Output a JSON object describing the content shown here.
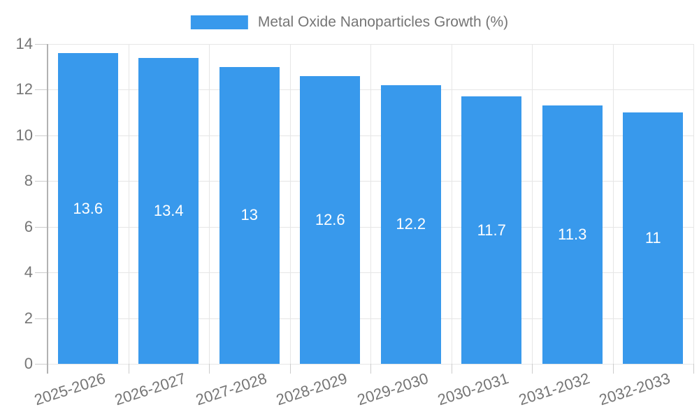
{
  "chart_data": {
    "type": "bar",
    "title": "Metal Oxide Nanoparticles Growth (%)",
    "categories": [
      "2025-2026",
      "2026-2027",
      "2027-2028",
      "2028-2029",
      "2029-2030",
      "2030-2031",
      "2031-2032",
      "2032-2033"
    ],
    "values": [
      13.6,
      13.4,
      13,
      12.6,
      12.2,
      11.7,
      11.3,
      11
    ],
    "xlabel": "",
    "ylabel": "",
    "ylim": [
      0,
      14
    ],
    "yticks": [
      0,
      2,
      4,
      6,
      8,
      10,
      12,
      14
    ],
    "grid": true,
    "legend_position": "top-center",
    "colors": {
      "bar": "#3899ec",
      "value_label": "#ffffff",
      "axis_text": "#757575",
      "gridline": "#e6e6e6",
      "tick": "#cccccc",
      "axis_line": "#b2b2b2",
      "background": "#ffffff"
    }
  }
}
